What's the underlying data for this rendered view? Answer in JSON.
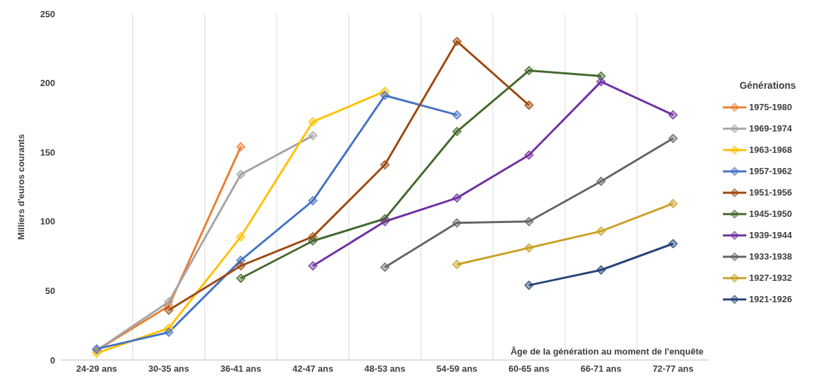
{
  "chart_data": {
    "type": "line",
    "ylabel": "Milliers d'euros courants",
    "xlabel": "Âge de la génération au moment de l'enquête",
    "legend_title": "Générations",
    "categories": [
      "24-29 ans",
      "30-35 ans",
      "36-41 ans",
      "42-47 ans",
      "48-53 ans",
      "54-59 ans",
      "60-65 ans",
      "66-71 ans",
      "72-77 ans"
    ],
    "ylim": [
      0,
      250
    ],
    "yticks": [
      0,
      50,
      100,
      150,
      200,
      250
    ],
    "grid": "x",
    "legend": "right",
    "marker": "diamond",
    "line_style": "solid",
    "series": [
      {
        "name": "1975-1980",
        "color": "#ed7d31",
        "values": [
          7,
          39,
          154,
          null,
          null,
          null,
          null,
          null,
          null
        ]
      },
      {
        "name": "1969-1974",
        "color": "#a5a5a5",
        "values": [
          7,
          42,
          134,
          162,
          null,
          null,
          null,
          null,
          null
        ]
      },
      {
        "name": "1963-1968",
        "color": "#ffc000",
        "values": [
          5,
          23,
          89,
          172,
          194,
          null,
          null,
          null,
          null
        ]
      },
      {
        "name": "1957-1962",
        "color": "#4472c4",
        "values": [
          8,
          20,
          72,
          115,
          191,
          177,
          null,
          null,
          null
        ]
      },
      {
        "name": "1951-1956",
        "color": "#9e480e",
        "values": [
          null,
          36,
          68,
          89,
          141,
          230,
          184,
          null,
          null
        ]
      },
      {
        "name": "1945-1950",
        "color": "#43682b",
        "values": [
          null,
          null,
          59,
          86,
          102,
          165,
          209,
          205,
          null
        ]
      },
      {
        "name": "1939-1944",
        "color": "#7030a0",
        "values": [
          null,
          null,
          null,
          68,
          100,
          117,
          148,
          201,
          177
        ]
      },
      {
        "name": "1933-1938",
        "color": "#636363",
        "values": [
          null,
          null,
          null,
          null,
          67,
          99,
          100,
          129,
          160
        ]
      },
      {
        "name": "1927-1932",
        "color": "#c9a023",
        "values": [
          null,
          null,
          null,
          null,
          null,
          69,
          81,
          93,
          113
        ]
      },
      {
        "name": "1921-1926",
        "color": "#264478",
        "values": [
          null,
          null,
          null,
          null,
          null,
          null,
          54,
          65,
          84
        ]
      }
    ]
  }
}
